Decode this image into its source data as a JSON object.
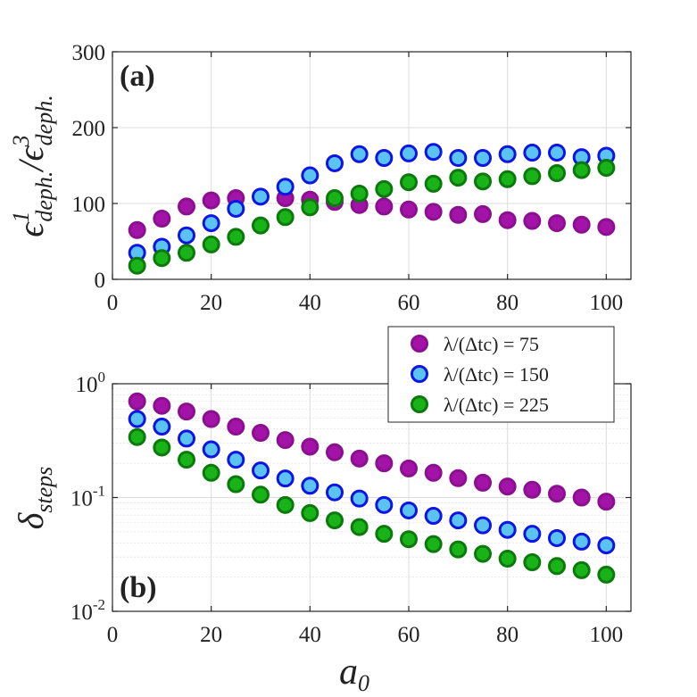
{
  "chart_data": [
    {
      "panel": "top",
      "type": "scatter",
      "panel_label": "(a)",
      "ylabel": "ε¹_deph. / ε³_deph.",
      "ylabel_parts": {
        "eps1": "ϵ",
        "sup1": "1",
        "sub1": "deph.",
        "slash": "/",
        "eps3": "ϵ",
        "sup3": "3",
        "sub3": "deph."
      },
      "xlabel": "",
      "xlim": [
        0,
        105
      ],
      "ylim": [
        0,
        300
      ],
      "xticks": [
        0,
        20,
        40,
        60,
        80,
        100
      ],
      "yticks": [
        0,
        100,
        200,
        300
      ],
      "xtick_labels": [
        "0",
        "20",
        "40",
        "60",
        "80",
        "100"
      ],
      "ytick_labels": [
        "0",
        "100",
        "200",
        "300"
      ],
      "grid": true,
      "x": [
        5,
        10,
        15,
        20,
        25,
        30,
        35,
        40,
        45,
        50,
        55,
        60,
        65,
        70,
        75,
        80,
        85,
        90,
        95,
        100
      ],
      "series": [
        {
          "name": "λ/(Δtc) = 75",
          "fill": "#a313a8",
          "edge": "#8b1090",
          "x": [
            5,
            10,
            15,
            20,
            25,
            35,
            40,
            45,
            50,
            55,
            60,
            65,
            70,
            75,
            80,
            85,
            90,
            95,
            100
          ],
          "values": [
            65,
            80,
            96,
            104,
            107,
            107,
            105,
            102,
            98,
            96,
            92,
            89,
            85,
            86,
            78,
            77,
            74,
            72,
            69
          ]
        },
        {
          "name": "λ/(Δtc) = 150",
          "fill": "#5bc3f0",
          "edge": "#0c14e6",
          "values": [
            35,
            43,
            58,
            74,
            93,
            109,
            122,
            137,
            153,
            165,
            160,
            166,
            168,
            160,
            160,
            165,
            167,
            167,
            161,
            163
          ]
        },
        {
          "name": "λ/(Δtc) = 225",
          "fill": "#19b219",
          "edge": "#0a7a0a",
          "values": [
            18,
            28,
            35,
            46,
            56,
            71,
            82,
            95,
            107,
            113,
            119,
            128,
            126,
            134,
            129,
            132,
            136,
            140,
            144,
            147
          ]
        }
      ]
    },
    {
      "panel": "bottom",
      "type": "scatter",
      "yscale": "log",
      "panel_label": "(b)",
      "ylabel": "δ_steps",
      "ylabel_parts": {
        "delta": "δ",
        "sub": "steps"
      },
      "xlabel": "a₀",
      "xlabel_parts": {
        "a": "a",
        "sub": "0"
      },
      "xlim": [
        0,
        105
      ],
      "ylim": [
        0.01,
        1
      ],
      "xticks": [
        0,
        20,
        40,
        60,
        80,
        100
      ],
      "yticks": [
        0.01,
        0.1,
        1
      ],
      "xtick_labels": [
        "0",
        "20",
        "40",
        "60",
        "80",
        "100"
      ],
      "ytick_labels": [
        {
          "base": "10",
          "exp": "-2"
        },
        {
          "base": "10",
          "exp": "-1"
        },
        {
          "base": "10",
          "exp": "0"
        }
      ],
      "grid": true,
      "x": [
        5,
        10,
        15,
        20,
        25,
        30,
        35,
        40,
        45,
        50,
        55,
        60,
        65,
        70,
        75,
        80,
        85,
        90,
        95,
        100
      ],
      "series": [
        {
          "name": "λ/(Δtc) = 75",
          "fill": "#a313a8",
          "edge": "#8b1090",
          "values": [
            0.7,
            0.64,
            0.57,
            0.49,
            0.42,
            0.37,
            0.32,
            0.28,
            0.25,
            0.22,
            0.2,
            0.18,
            0.165,
            0.148,
            0.135,
            0.125,
            0.117,
            0.108,
            0.1,
            0.092
          ]
        },
        {
          "name": "λ/(Δtc) = 150",
          "fill": "#5bc3f0",
          "edge": "#0c14e6",
          "values": [
            0.49,
            0.42,
            0.33,
            0.265,
            0.215,
            0.173,
            0.147,
            0.127,
            0.111,
            0.098,
            0.086,
            0.077,
            0.069,
            0.063,
            0.057,
            0.052,
            0.048,
            0.044,
            0.041,
            0.038
          ]
        },
        {
          "name": "λ/(Δtc) = 225",
          "fill": "#19b219",
          "edge": "#0a7a0a",
          "values": [
            0.34,
            0.275,
            0.215,
            0.165,
            0.131,
            0.106,
            0.086,
            0.073,
            0.063,
            0.055,
            0.048,
            0.043,
            0.039,
            0.035,
            0.032,
            0.029,
            0.027,
            0.025,
            0.023,
            0.021
          ]
        }
      ],
      "legend": {
        "placement": "top-right",
        "entries": [
          {
            "label": "λ/(Δtc) = 75",
            "fill": "#a313a8",
            "edge": "#8b1090"
          },
          {
            "label": "λ/(Δtc) = 150",
            "fill": "#5bc3f0",
            "edge": "#0c14e6"
          },
          {
            "label": "λ/(Δtc) = 225",
            "fill": "#19b219",
            "edge": "#0a7a0a"
          }
        ]
      }
    }
  ]
}
